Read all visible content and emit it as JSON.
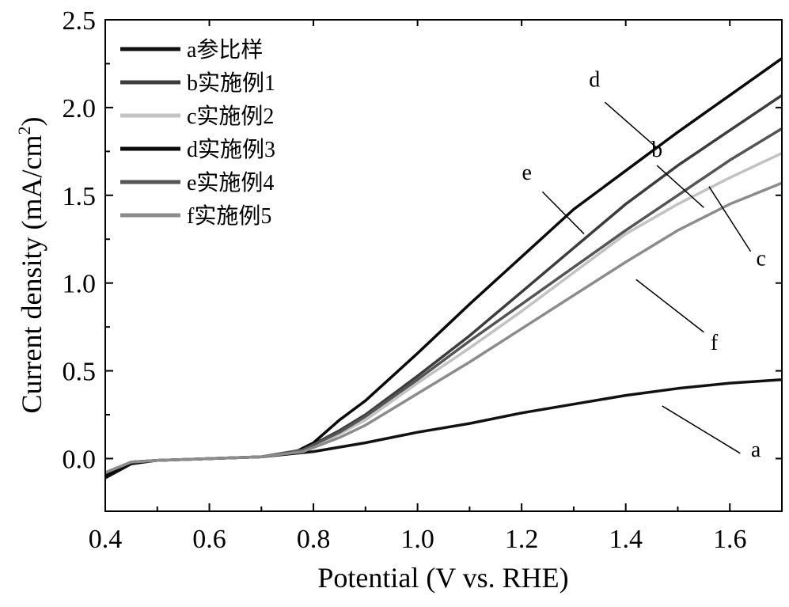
{
  "chart_data": {
    "type": "line",
    "title": "",
    "xlabel": "Potential (V vs. RHE)",
    "ylabel": "Current density (mA/cm",
    "ylabel_sup": "2",
    "ylabel_close": ")",
    "xlim": [
      0.4,
      1.7
    ],
    "ylim": [
      -0.3,
      2.5
    ],
    "xticks": [
      0.4,
      0.6,
      0.8,
      1.0,
      1.2,
      1.4,
      1.6
    ],
    "xtick_labels": [
      "0.4",
      "0.6",
      "0.8",
      "1.0",
      "1.2",
      "1.4",
      "1.6"
    ],
    "yticks": [
      0.0,
      0.5,
      1.0,
      1.5,
      2.0,
      2.5
    ],
    "ytick_labels": [
      "0.0",
      "0.5",
      "1.0",
      "1.5",
      "2.0",
      "2.5"
    ],
    "legend_position": "top-left",
    "grid": false,
    "series": [
      {
        "id": "a",
        "name": "a参比样",
        "color": "#111111",
        "x": [
          0.4,
          0.45,
          0.5,
          0.6,
          0.7,
          0.8,
          0.9,
          1.0,
          1.1,
          1.2,
          1.3,
          1.4,
          1.5,
          1.6,
          1.7
        ],
        "y": [
          -0.11,
          -0.03,
          -0.01,
          0.0,
          0.01,
          0.04,
          0.09,
          0.15,
          0.2,
          0.26,
          0.31,
          0.36,
          0.4,
          0.43,
          0.45
        ],
        "label_text": "a",
        "label_xy": [
          1.65,
          0.01
        ],
        "leader": [
          [
            1.62,
            0.03
          ],
          [
            1.47,
            0.3
          ]
        ]
      },
      {
        "id": "b",
        "name": "b实施例1",
        "color": "#3c3c3c",
        "x": [
          0.4,
          0.45,
          0.5,
          0.6,
          0.7,
          0.78,
          0.85,
          0.9,
          1.0,
          1.1,
          1.2,
          1.3,
          1.4,
          1.5,
          1.6,
          1.7
        ],
        "y": [
          -0.08,
          -0.02,
          -0.01,
          0.0,
          0.01,
          0.05,
          0.16,
          0.25,
          0.47,
          0.7,
          0.95,
          1.2,
          1.45,
          1.67,
          1.87,
          2.07
        ],
        "label_text": "b",
        "label_xy": [
          1.46,
          1.72
        ],
        "leader": [
          [
            1.46,
            1.67
          ],
          [
            1.55,
            1.43
          ]
        ]
      },
      {
        "id": "c",
        "name": "c实施例2",
        "color": "#c2c2c2",
        "x": [
          0.4,
          0.45,
          0.5,
          0.6,
          0.7,
          0.78,
          0.85,
          0.9,
          1.0,
          1.1,
          1.2,
          1.3,
          1.4,
          1.5,
          1.6,
          1.7
        ],
        "y": [
          -0.08,
          -0.02,
          -0.01,
          0.0,
          0.01,
          0.04,
          0.14,
          0.22,
          0.43,
          0.63,
          0.84,
          1.06,
          1.28,
          1.45,
          1.6,
          1.74
        ],
        "label_text": "c",
        "label_xy": [
          1.66,
          1.1
        ],
        "leader": [
          [
            1.64,
            1.18
          ],
          [
            1.56,
            1.55
          ]
        ]
      },
      {
        "id": "d",
        "name": "d实施例3",
        "color": "#0a0a0a",
        "x": [
          0.4,
          0.45,
          0.5,
          0.6,
          0.7,
          0.76,
          0.8,
          0.85,
          0.9,
          1.0,
          1.1,
          1.2,
          1.3,
          1.4,
          1.5,
          1.6,
          1.7
        ],
        "y": [
          -0.1,
          -0.02,
          -0.01,
          0.0,
          0.01,
          0.03,
          0.09,
          0.22,
          0.33,
          0.6,
          0.88,
          1.15,
          1.42,
          1.64,
          1.86,
          2.07,
          2.28
        ],
        "label_text": "d",
        "label_xy": [
          1.34,
          2.12
        ],
        "leader": [
          [
            1.36,
            2.03
          ],
          [
            1.46,
            1.77
          ]
        ]
      },
      {
        "id": "e",
        "name": "e实施例4",
        "color": "#555555",
        "x": [
          0.4,
          0.45,
          0.5,
          0.6,
          0.7,
          0.78,
          0.85,
          0.9,
          1.0,
          1.1,
          1.2,
          1.3,
          1.4,
          1.5,
          1.6,
          1.7
        ],
        "y": [
          -0.08,
          -0.02,
          -0.01,
          0.0,
          0.01,
          0.05,
          0.15,
          0.24,
          0.45,
          0.67,
          0.88,
          1.09,
          1.3,
          1.5,
          1.7,
          1.88
        ],
        "label_text": "e",
        "label_xy": [
          1.21,
          1.59
        ],
        "leader": [
          [
            1.24,
            1.52
          ],
          [
            1.32,
            1.28
          ]
        ]
      },
      {
        "id": "f",
        "name": "f实施例5",
        "color": "#8c8c8c",
        "x": [
          0.4,
          0.45,
          0.5,
          0.6,
          0.7,
          0.78,
          0.85,
          0.9,
          1.0,
          1.1,
          1.2,
          1.3,
          1.4,
          1.5,
          1.6,
          1.7
        ],
        "y": [
          -0.08,
          -0.02,
          -0.01,
          0.0,
          0.01,
          0.04,
          0.12,
          0.19,
          0.37,
          0.55,
          0.74,
          0.93,
          1.12,
          1.3,
          1.45,
          1.57
        ],
        "label_text": "f",
        "label_xy": [
          1.57,
          0.62
        ],
        "leader": [
          [
            1.55,
            0.72
          ],
          [
            1.42,
            1.02
          ]
        ]
      }
    ]
  }
}
